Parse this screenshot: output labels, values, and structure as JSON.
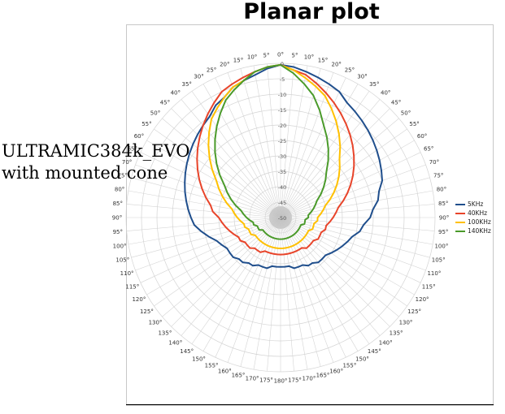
{
  "title": "Planar plot",
  "side_note": {
    "line1": "ULTRAMIC384k_EVO",
    "line2": "with mounted cone"
  },
  "chart_data": {
    "type": "polar",
    "title": "Planar plot",
    "radial_ticks": [
      "0",
      "-5",
      "-10",
      "-15",
      "-20",
      "-25",
      "-30",
      "-35",
      "-40",
      "-45",
      "-50"
    ],
    "radial_range": [
      -50,
      0
    ],
    "angle_labels": [
      "0°",
      "5°",
      "10°",
      "15°",
      "20°",
      "25°",
      "30°",
      "35°",
      "40°",
      "45°",
      "50°",
      "55°",
      "60°",
      "65°",
      "70°",
      "75°",
      "80°",
      "85°",
      "90°",
      "95°",
      "100°",
      "105°",
      "110°",
      "115°",
      "120°",
      "125°",
      "130°",
      "135°",
      "140°",
      "145°",
      "150°",
      "155°",
      "160°",
      "165°",
      "170°",
      "175°",
      "180°",
      "175°",
      "170°",
      "165°",
      "160°",
      "155°",
      "150°",
      "145°",
      "140°",
      "135°",
      "130°",
      "125°",
      "120°",
      "115°",
      "110°",
      "105°",
      "100°",
      "95°",
      "90°",
      "85°",
      "80°",
      "75°",
      "70°",
      "65°",
      "60°",
      "55°",
      "50°",
      "45°",
      "40°",
      "35°",
      "30°",
      "25°",
      "20°",
      "15°",
      "10°",
      "5°"
    ],
    "angle_step_deg": 5,
    "legend_position": "right",
    "grid": true,
    "series": [
      {
        "name": "5KHz",
        "color": "#1f4e8c",
        "values": [
          -0.5,
          -1,
          -2,
          -3,
          -4,
          -5,
          -7,
          -8,
          -9,
          -10,
          -11,
          -12,
          -13,
          -14,
          -15,
          -17,
          -18,
          -20,
          -21,
          -23,
          -24,
          -26,
          -27,
          -28,
          -29,
          -30,
          -31,
          -31,
          -31,
          -32,
          -32,
          -33,
          -33,
          -33,
          -34,
          -34,
          -34,
          -34,
          -34,
          -33,
          -33,
          -33,
          -32,
          -32,
          -31,
          -31,
          -30,
          -30,
          -30,
          -29,
          -28,
          -26,
          -24,
          -22,
          -21,
          -20,
          -19,
          -18,
          -17,
          -16,
          -15,
          -14,
          -13,
          -12,
          -11,
          -10,
          -8,
          -7,
          -5,
          -4,
          -3,
          -1.5
        ]
      },
      {
        "name": "40KHz",
        "color": "#e8442a",
        "values": [
          -0.5,
          -2,
          -3,
          -5,
          -7,
          -9,
          -11,
          -13,
          -15,
          -17,
          -19,
          -21,
          -23,
          -25,
          -27,
          -29,
          -31,
          -32,
          -33,
          -34,
          -35,
          -35,
          -36,
          -36,
          -36,
          -37,
          -37,
          -37,
          -37,
          -38,
          -38,
          -38,
          -38,
          -38,
          -38,
          -38,
          -38,
          -38,
          -38,
          -38,
          -38,
          -38,
          -37,
          -37,
          -37,
          -36,
          -36,
          -36,
          -35,
          -35,
          -34,
          -33,
          -32,
          -31,
          -30,
          -28,
          -27,
          -25,
          -23,
          -21,
          -19,
          -17,
          -15,
          -13,
          -11,
          -9,
          -7,
          -5,
          -4,
          -3,
          -2,
          -1
        ]
      },
      {
        "name": "100KHz",
        "color": "#ffc000",
        "values": [
          -0.5,
          -2,
          -4,
          -6,
          -8,
          -11,
          -14,
          -17,
          -20,
          -23,
          -25,
          -27,
          -29,
          -31,
          -33,
          -35,
          -36,
          -37,
          -38,
          -38,
          -39,
          -39,
          -39,
          -40,
          -40,
          -40,
          -40,
          -40,
          -40,
          -40,
          -40,
          -40,
          -40,
          -40,
          -40,
          -40,
          -40,
          -40,
          -40,
          -40,
          -40,
          -40,
          -40,
          -40,
          -40,
          -40,
          -40,
          -40,
          -39,
          -39,
          -39,
          -38,
          -38,
          -37,
          -36,
          -35,
          -34,
          -32,
          -30,
          -28,
          -26,
          -23,
          -20,
          -17,
          -14,
          -11,
          -9,
          -7,
          -5,
          -4,
          -2,
          -1
        ]
      },
      {
        "name": "140KHz",
        "color": "#4a9a2a",
        "values": [
          -0.5,
          -3,
          -6,
          -9,
          -13,
          -17,
          -20,
          -23,
          -26,
          -29,
          -31,
          -33,
          -35,
          -37,
          -38,
          -39,
          -40,
          -41,
          -41,
          -42,
          -42,
          -42,
          -43,
          -43,
          -43,
          -43,
          -43,
          -43,
          -43,
          -43,
          -43,
          -43,
          -43,
          -43,
          -43,
          -43,
          -43,
          -43,
          -43,
          -43,
          -43,
          -43,
          -43,
          -43,
          -43,
          -43,
          -43,
          -43,
          -42,
          -42,
          -42,
          -41,
          -41,
          -40,
          -39,
          -38,
          -37,
          -35,
          -33,
          -31,
          -29,
          -26,
          -23,
          -20,
          -17,
          -14,
          -11,
          -8,
          -6,
          -4,
          -2,
          -1
        ]
      }
    ]
  }
}
